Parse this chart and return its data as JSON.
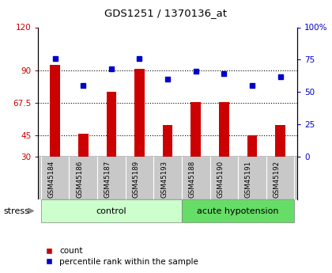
{
  "title": "GDS1251 / 1370136_at",
  "samples": [
    "GSM45184",
    "GSM45186",
    "GSM45187",
    "GSM45189",
    "GSM45193",
    "GSM45188",
    "GSM45190",
    "GSM45191",
    "GSM45192"
  ],
  "bar_values": [
    94,
    46,
    75,
    91,
    52,
    68,
    68,
    45,
    52
  ],
  "dot_values": [
    76,
    55,
    68,
    76,
    60,
    66,
    64,
    55,
    62
  ],
  "bar_color": "#cc0000",
  "dot_color": "#0000cc",
  "ylim_left": [
    30,
    120
  ],
  "ylim_right": [
    0,
    100
  ],
  "yticks_left": [
    30,
    45,
    67.5,
    90,
    120
  ],
  "yticks_right": [
    0,
    25,
    50,
    75,
    100
  ],
  "ytick_labels_left": [
    "30",
    "45",
    "67.5",
    "90",
    "120"
  ],
  "ytick_labels_right": [
    "0",
    "25",
    "50",
    "75",
    "100%"
  ],
  "hlines": [
    45,
    67.5,
    90
  ],
  "n_control": 5,
  "n_acute": 4,
  "group_label_control": "control",
  "group_label_acute": "acute hypotension",
  "stress_label": "stress",
  "legend_count": "count",
  "legend_pct": "percentile rank within the sample",
  "bar_bottom": 30,
  "ylabel_left_color": "#cc0000",
  "ylabel_right_color": "#0000cc",
  "bg_xlabel": "#c8c8c8",
  "bg_control": "#ccffcc",
  "bg_acute": "#66dd66",
  "bar_width": 0.35
}
